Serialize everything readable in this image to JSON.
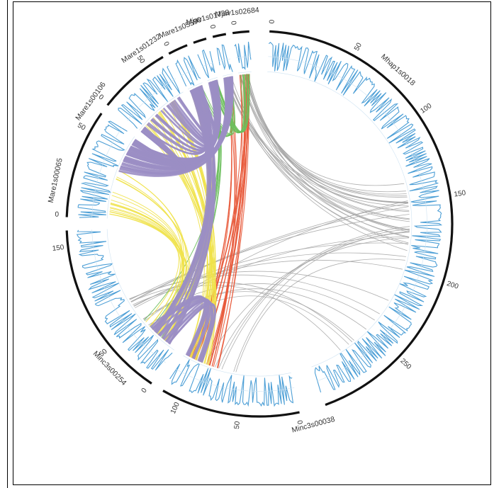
{
  "figure": {
    "type": "circos",
    "chromosomes": [
      {
        "name": "Mhap1s0018",
        "length": 300,
        "ticks": [
          50,
          100,
          150,
          200,
          250
        ],
        "start_label": "0"
      },
      {
        "name": "Minc3s00038",
        "length": 115,
        "ticks": [
          50,
          100
        ],
        "start_label": "0"
      },
      {
        "name": "Minc3s00254",
        "length": 165,
        "ticks": [
          50,
          150
        ],
        "start_label": "0"
      },
      {
        "name": "Mare1s00065",
        "length": 62,
        "ticks": [
          50
        ],
        "start_label": "0"
      },
      {
        "name": "Mare1s00106",
        "length": 68,
        "ticks": [
          50
        ],
        "start_label": "0"
      },
      {
        "name": "Mare1s01232",
        "length": 20,
        "ticks": [],
        "start_label": "0"
      },
      {
        "name": "Mare1s05590",
        "length": 12,
        "ticks": [],
        "start_label": ""
      },
      {
        "name": "Mjav1s01739",
        "length": 14,
        "ticks": [],
        "start_label": "0"
      },
      {
        "name": "Mjav1s02684",
        "length": 13,
        "ticks": [],
        "start_label": "0"
      }
    ],
    "link_colors": {
      "purple": "#9b8ec4",
      "yellow": "#f0e24a",
      "green": "#6cbf5c",
      "red": "#e8593a",
      "gray": "#a6a6a6"
    },
    "track_color": "#4d9fd6",
    "ideogram_color": "#111111"
  }
}
